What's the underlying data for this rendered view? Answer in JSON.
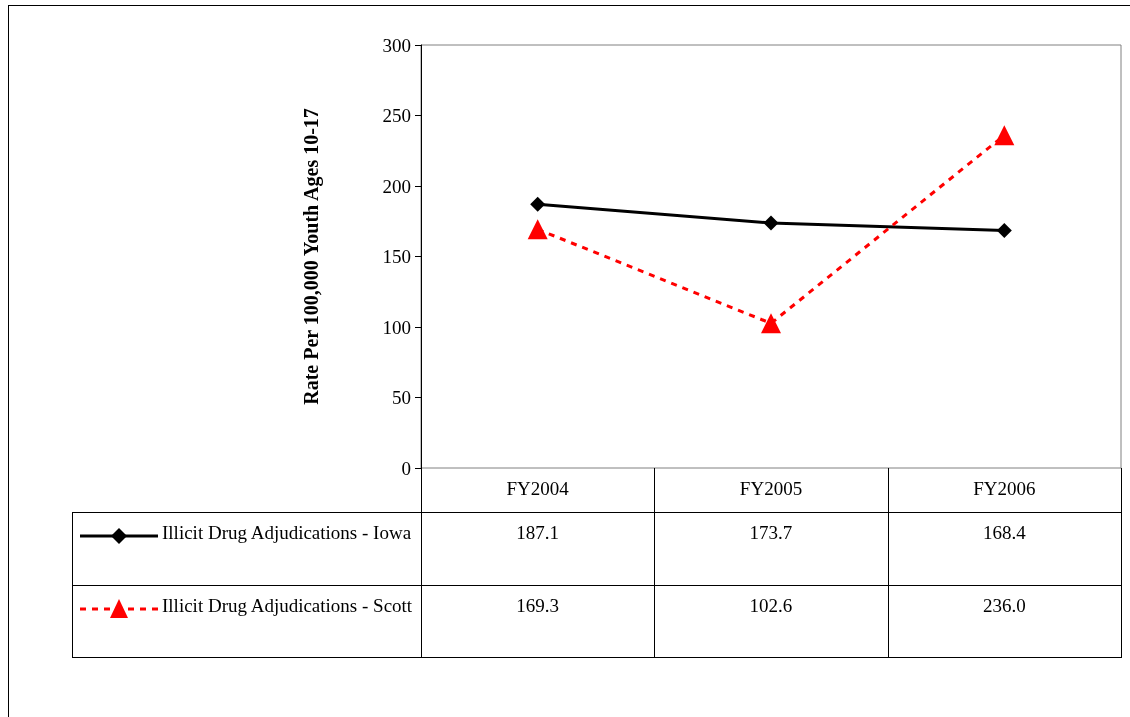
{
  "chart_data": {
    "type": "line",
    "ylabel": "Rate Per 100,000 Youth Ages 10-17",
    "categories": [
      "FY2004",
      "FY2005",
      "FY2006"
    ],
    "series": [
      {
        "name": "Illicit Drug Adjudications - Iowa",
        "color": "#000000",
        "values": [
          187.1,
          173.7,
          168.4
        ],
        "value_labels": [
          "187.1",
          "173.7",
          "168.4"
        ],
        "marker": "diamond",
        "line_style": "solid"
      },
      {
        "name": "Illicit Drug Adjudications - Scott",
        "color": "#ff0000",
        "values": [
          169.3,
          102.6,
          236.0
        ],
        "value_labels": [
          "169.3",
          "102.6",
          "236.0"
        ],
        "marker": "triangle",
        "line_style": "dashed"
      }
    ],
    "ylim": [
      0,
      300
    ],
    "yticks": [
      0,
      50,
      100,
      150,
      200,
      250,
      300
    ],
    "grid": false,
    "legend": "bottom"
  }
}
